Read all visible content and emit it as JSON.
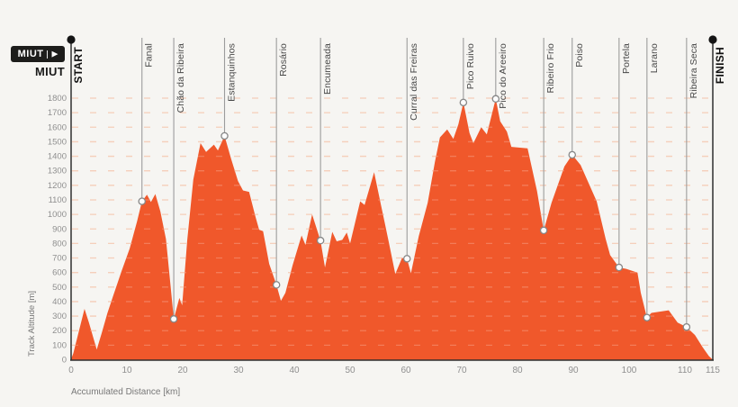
{
  "logo": {
    "badge_text": "MIUT",
    "badge_play": "▶",
    "wordmark": "MIUT"
  },
  "colors": {
    "background": "#f6f5f2",
    "fill": "#F0582B",
    "grid_dash": "#F2C2A8",
    "grid_dash_over_fill": "rgba(255,255,255,0.22)",
    "axis": "#2E2E2E",
    "checkpoint_line": "#9C9C9C",
    "marker_fill": "#FDFDFD",
    "marker_stroke": "#878787",
    "tick_text": "#8F8F8F",
    "axis_title_text": "#787878",
    "checkpoint_text": "#474747",
    "terminal_text": "#101010",
    "terminal_dot": "#141414"
  },
  "chart_data": {
    "type": "area",
    "xlabel": "Accumulated Distance [km]",
    "ylabel": "Track Altitude [m]",
    "xlim": [
      0,
      115
    ],
    "ylim": [
      0,
      1800
    ],
    "x_ticks": [
      0,
      10,
      20,
      30,
      40,
      50,
      60,
      70,
      80,
      90,
      100,
      110,
      115
    ],
    "y_ticks": [
      0,
      100,
      200,
      300,
      400,
      500,
      600,
      700,
      800,
      900,
      1000,
      1100,
      1200,
      1300,
      1400,
      1500,
      1600,
      1700,
      1800
    ],
    "grid": "horizontal-dashed",
    "legend": "none",
    "profile_km_m": [
      [
        0,
        5
      ],
      [
        0.4,
        45
      ],
      [
        2.4,
        350
      ],
      [
        3.2,
        255
      ],
      [
        4.6,
        70
      ],
      [
        5.5,
        185
      ],
      [
        6.5,
        320
      ],
      [
        7.5,
        435
      ],
      [
        9,
        605
      ],
      [
        10.5,
        765
      ],
      [
        11.8,
        950
      ],
      [
        12.7,
        1090
      ],
      [
        13.6,
        1135
      ],
      [
        14.3,
        1085
      ],
      [
        15.1,
        1140
      ],
      [
        16,
        1020
      ],
      [
        17,
        830
      ],
      [
        17.7,
        560
      ],
      [
        18.4,
        280
      ],
      [
        19.4,
        425
      ],
      [
        19.9,
        375
      ],
      [
        20.8,
        820
      ],
      [
        21.9,
        1240
      ],
      [
        23.2,
        1490
      ],
      [
        24.2,
        1430
      ],
      [
        25.6,
        1480
      ],
      [
        26.3,
        1440
      ],
      [
        27.5,
        1540
      ],
      [
        28.7,
        1380
      ],
      [
        29.9,
        1230
      ],
      [
        30.8,
        1165
      ],
      [
        31.9,
        1155
      ],
      [
        33,
        990
      ],
      [
        33.7,
        895
      ],
      [
        34.4,
        885
      ],
      [
        35.5,
        660
      ],
      [
        36.8,
        515
      ],
      [
        37.6,
        405
      ],
      [
        38.4,
        460
      ],
      [
        39.7,
        650
      ],
      [
        41.3,
        855
      ],
      [
        42,
        790
      ],
      [
        43.2,
        1000
      ],
      [
        44.7,
        820
      ],
      [
        45.5,
        635
      ],
      [
        46.8,
        880
      ],
      [
        47.6,
        815
      ],
      [
        48.6,
        825
      ],
      [
        49.4,
        875
      ],
      [
        50,
        800
      ],
      [
        51.8,
        1090
      ],
      [
        52.6,
        1065
      ],
      [
        54.3,
        1290
      ],
      [
        55.5,
        1070
      ],
      [
        56.2,
        945
      ],
      [
        56.9,
        815
      ],
      [
        58.1,
        590
      ],
      [
        59.3,
        700
      ],
      [
        60.2,
        695
      ],
      [
        60.9,
        595
      ],
      [
        62.3,
        850
      ],
      [
        63.9,
        1080
      ],
      [
        65.2,
        1360
      ],
      [
        66.1,
        1530
      ],
      [
        67.4,
        1585
      ],
      [
        68.5,
        1520
      ],
      [
        69.4,
        1620
      ],
      [
        70.3,
        1770
      ],
      [
        71.4,
        1560
      ],
      [
        72.1,
        1490
      ],
      [
        73.5,
        1600
      ],
      [
        74.5,
        1550
      ],
      [
        76.1,
        1795
      ],
      [
        76.9,
        1640
      ],
      [
        78.1,
        1570
      ],
      [
        78.9,
        1465
      ],
      [
        81.8,
        1455
      ],
      [
        83.5,
        1160
      ],
      [
        84.7,
        890
      ],
      [
        86.1,
        1080
      ],
      [
        88.4,
        1330
      ],
      [
        89.8,
        1410
      ],
      [
        91.3,
        1340
      ],
      [
        94.2,
        1090
      ],
      [
        95.8,
        830
      ],
      [
        96.6,
        720
      ],
      [
        98.2,
        635
      ],
      [
        99.5,
        625
      ],
      [
        101.5,
        600
      ],
      [
        102.1,
        460
      ],
      [
        103.2,
        290
      ],
      [
        104,
        322
      ],
      [
        107.1,
        340
      ],
      [
        108.7,
        255
      ],
      [
        110.3,
        225
      ],
      [
        111.8,
        170
      ],
      [
        113.2,
        85
      ],
      [
        114.3,
        25
      ],
      [
        115,
        0
      ]
    ],
    "checkpoints": [
      {
        "name": "START",
        "km": 0,
        "elevation": null,
        "terminal": true
      },
      {
        "name": "Fanal",
        "km": 12.7,
        "elevation": 1090
      },
      {
        "name": "Chão da Ribeira",
        "km": 18.4,
        "elevation": 280
      },
      {
        "name": "Estanquinhos",
        "km": 27.5,
        "elevation": 1540
      },
      {
        "name": "Rosário",
        "km": 36.8,
        "elevation": 515
      },
      {
        "name": "Encumeada",
        "km": 44.7,
        "elevation": 820
      },
      {
        "name": "Curral das Freiras",
        "km": 60.2,
        "elevation": 695
      },
      {
        "name": "Pico Ruivo",
        "km": 70.3,
        "elevation": 1770
      },
      {
        "name": "Pico do Areeiro",
        "km": 76.1,
        "elevation": 1795
      },
      {
        "name": "Ribeiro Frio",
        "km": 84.7,
        "elevation": 890
      },
      {
        "name": "Poiso",
        "km": 89.8,
        "elevation": 1410
      },
      {
        "name": "Portela",
        "km": 98.2,
        "elevation": 635
      },
      {
        "name": "Larano",
        "km": 103.2,
        "elevation": 290
      },
      {
        "name": "Ribeira Seca",
        "km": 110.3,
        "elevation": 225
      },
      {
        "name": "FINISH",
        "km": 115,
        "elevation": null,
        "terminal": true
      }
    ]
  }
}
